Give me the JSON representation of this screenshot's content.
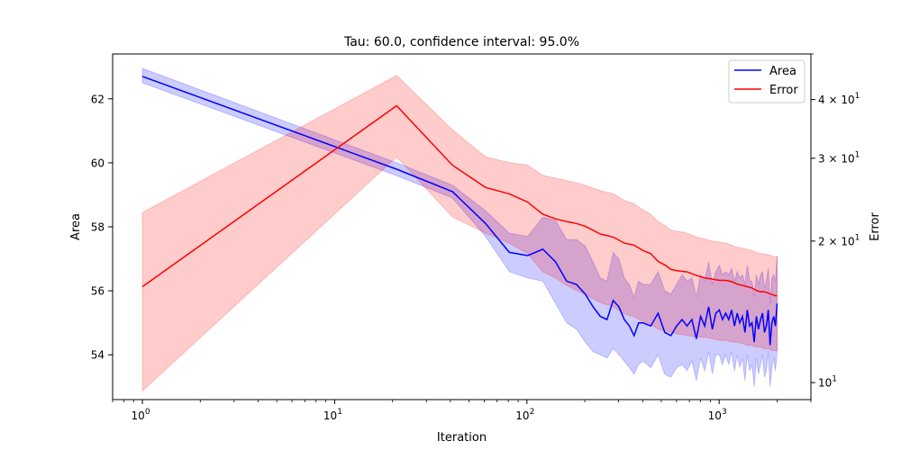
{
  "chart_data": {
    "type": "line",
    "title": "Tau: 60.0, confidence interval: 95.0%",
    "xlabel": "Iteration",
    "ylabel": "Area",
    "y2label": "Error",
    "xscale": "log",
    "xlim": [
      0.7,
      3000
    ],
    "ylim": [
      52.6,
      63.4
    ],
    "y2scale": "log",
    "y2lim": [
      9.2,
      50
    ],
    "grid": false,
    "legend_position": "top-right",
    "x_ticks": [
      {
        "value": 1,
        "base": "10",
        "exp": "0"
      },
      {
        "value": 10,
        "base": "10",
        "exp": "1"
      },
      {
        "value": 100,
        "base": "10",
        "exp": "2"
      },
      {
        "value": 1000,
        "base": "10",
        "exp": "3"
      }
    ],
    "y_ticks": [
      54,
      56,
      58,
      60,
      62
    ],
    "y2_ticks": [
      {
        "value": 10,
        "label": "10",
        "exp": "1"
      },
      {
        "value": 20,
        "label": "2 × 10",
        "exp": "1"
      },
      {
        "value": 30,
        "label": "3 × 10",
        "exp": "1"
      },
      {
        "value": 40,
        "label": "4 × 10",
        "exp": "1"
      }
    ],
    "series": [
      {
        "name": "Area",
        "color": "#0000ff",
        "band_color": "#0000ff",
        "axis": "left",
        "x": [
          1,
          21,
          41,
          61,
          81,
          101,
          121,
          141,
          161,
          181,
          201,
          221,
          241,
          261,
          281,
          301,
          321,
          341,
          361,
          381,
          401,
          441,
          481,
          521,
          561,
          601,
          641,
          681,
          721,
          761,
          801,
          841,
          881,
          921,
          961,
          1001,
          1041,
          1081,
          1121,
          1161,
          1201,
          1241,
          1281,
          1321,
          1361,
          1401,
          1441,
          1481,
          1521,
          1561,
          1601,
          1641,
          1681,
          1721,
          1761,
          1801,
          1841,
          1881,
          1921,
          1961,
          2001
        ],
        "y": [
          62.7,
          59.8,
          59.1,
          58.1,
          57.2,
          57.1,
          57.3,
          56.9,
          56.3,
          56.2,
          55.9,
          55.5,
          55.2,
          55.1,
          55.7,
          55.5,
          55.1,
          54.9,
          54.6,
          55.0,
          55.0,
          54.9,
          55.3,
          54.7,
          54.6,
          54.9,
          55.1,
          54.9,
          55.1,
          54.5,
          55.2,
          54.9,
          55.5,
          54.8,
          55.3,
          55.4,
          55.1,
          55.3,
          55.1,
          55.4,
          54.9,
          55.3,
          55.0,
          55.2,
          54.7,
          55.4,
          54.9,
          55.0,
          54.4,
          55.2,
          54.8,
          55.1,
          55.3,
          54.7,
          54.9,
          55.4,
          54.3,
          55.0,
          55.2,
          54.9,
          55.6
        ],
        "lower": [
          62.5,
          59.6,
          58.9,
          57.7,
          56.6,
          56.4,
          56.3,
          55.6,
          55.0,
          54.8,
          54.4,
          54.1,
          54.0,
          53.9,
          54.2,
          54.0,
          53.8,
          53.6,
          53.4,
          53.7,
          53.8,
          53.6,
          54.0,
          53.4,
          53.3,
          53.6,
          53.7,
          53.5,
          53.8,
          53.2,
          53.9,
          53.5,
          54.1,
          53.4,
          54.0,
          54.0,
          53.7,
          54.0,
          53.7,
          54.1,
          53.5,
          54.0,
          53.6,
          53.9,
          53.2,
          54.0,
          53.5,
          53.7,
          53.0,
          53.9,
          53.4,
          53.7,
          54.0,
          53.3,
          53.5,
          54.1,
          53.0,
          53.6,
          53.9,
          53.5,
          54.1
        ],
        "upper": [
          62.95,
          60.0,
          59.3,
          58.5,
          57.8,
          57.7,
          58.3,
          58.2,
          57.6,
          57.6,
          57.4,
          56.9,
          56.4,
          56.3,
          57.2,
          57.0,
          56.4,
          56.2,
          55.8,
          56.3,
          56.2,
          56.2,
          56.6,
          56.0,
          55.9,
          56.2,
          56.5,
          56.3,
          56.4,
          55.8,
          56.5,
          56.3,
          56.9,
          56.2,
          56.6,
          56.8,
          56.5,
          56.6,
          56.5,
          56.7,
          56.3,
          56.6,
          56.4,
          56.5,
          56.2,
          56.8,
          56.3,
          56.3,
          55.8,
          56.5,
          56.2,
          56.5,
          56.6,
          56.1,
          56.3,
          56.7,
          55.6,
          56.4,
          56.5,
          56.3,
          57.1
        ]
      },
      {
        "name": "Error",
        "color": "#ff0000",
        "band_color": "#ff0000",
        "axis": "right",
        "x": [
          1,
          21,
          41,
          61,
          81,
          101,
          121,
          141,
          161,
          181,
          201,
          241,
          281,
          321,
          361,
          401,
          441,
          481,
          521,
          561,
          601,
          681,
          761,
          841,
          921,
          1001,
          1081,
          1161,
          1241,
          1321,
          1401,
          1481,
          1561,
          1641,
          1721,
          1801,
          1881,
          1961,
          2001
        ],
        "y": [
          16.0,
          38.8,
          29.0,
          26.0,
          25.2,
          24.2,
          22.8,
          22.3,
          22.0,
          21.8,
          21.5,
          20.7,
          20.4,
          19.8,
          19.6,
          19.1,
          18.8,
          18.1,
          17.8,
          17.4,
          17.3,
          17.2,
          16.9,
          16.7,
          16.6,
          16.5,
          16.5,
          16.4,
          16.2,
          16.1,
          16.0,
          15.9,
          15.7,
          15.6,
          15.6,
          15.5,
          15.4,
          15.3,
          15.3
        ],
        "lower": [
          9.6,
          30.2,
          22.5,
          20.8,
          19.8,
          18.8,
          17.2,
          16.7,
          16.1,
          15.7,
          15.4,
          14.8,
          14.5,
          14.0,
          13.8,
          13.5,
          13.3,
          13.0,
          12.9,
          12.8,
          12.7,
          12.6,
          12.5,
          12.5,
          12.4,
          12.3,
          12.3,
          12.2,
          12.2,
          12.1,
          12.0,
          12.0,
          11.9,
          11.9,
          11.8,
          11.8,
          11.7,
          11.7,
          11.7
        ],
        "upper": [
          23.0,
          45.0,
          34.5,
          30.2,
          29.4,
          29.0,
          27.6,
          27.2,
          26.9,
          26.6,
          26.3,
          25.6,
          25.2,
          24.4,
          24.0,
          23.3,
          22.8,
          22.0,
          21.6,
          21.1,
          21.0,
          20.8,
          20.4,
          20.2,
          20.0,
          19.9,
          19.8,
          19.6,
          19.4,
          19.3,
          19.2,
          19.1,
          18.9,
          18.8,
          18.8,
          18.7,
          18.6,
          18.5,
          18.5
        ]
      }
    ]
  }
}
